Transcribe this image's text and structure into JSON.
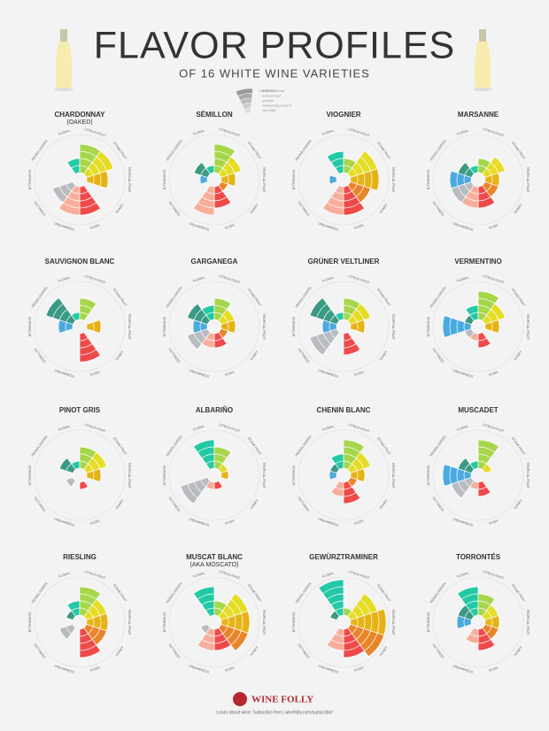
{
  "title": "FLAVOR PROFILES",
  "subtitle": "OF 16 WHITE WINE VARIETIES",
  "legend": {
    "title": "LEGEND",
    "levels": [
      "bold & intense",
      "pronounced",
      "present",
      "somewhat present",
      "very little"
    ]
  },
  "chart_data": [
    {
      "type": "polar",
      "title": "CHARDONNAY",
      "subtitle": "(OAKED)",
      "categories": [
        "FLORAL",
        "CITRUS FRUIT",
        "STONE FRUIT",
        "TROPICAL FRUIT",
        "HONEY",
        "ACIDS",
        "CREAMINESS",
        "FATTINESS",
        "BITTERNESS",
        "HERBAL/GREEN"
      ],
      "values": [
        2,
        4,
        4,
        3,
        0,
        4,
        4,
        3,
        0,
        0
      ],
      "colors": [
        "#22c9a4",
        "#a6d64a",
        "#e5dc25",
        "#e6b317",
        "#e8852b",
        "#ef4a4a",
        "#f6ae9b",
        "#b8bcc0",
        "#4aaae0",
        "#3a9a84"
      ],
      "rlim": [
        0,
        5
      ]
    },
    {
      "type": "polar",
      "title": "SÉMILLON",
      "categories": [
        "FLORAL",
        "CITRUS FRUIT",
        "STONE FRUIT",
        "TROPICAL FRUIT",
        "HONEY",
        "ACIDS",
        "CREAMINESS",
        "FATTINESS",
        "BITTERNESS",
        "HERBAL/GREEN"
      ],
      "values": [
        1,
        4,
        3,
        2,
        1,
        3,
        4,
        0,
        1,
        2
      ],
      "colors": [
        "#22c9a4",
        "#a6d64a",
        "#e5dc25",
        "#e6b317",
        "#e8852b",
        "#ef4a4a",
        "#f6ae9b",
        "#b8bcc0",
        "#4aaae0",
        "#3a9a84"
      ],
      "rlim": [
        0,
        5
      ]
    },
    {
      "type": "polar",
      "title": "VIOGNIER",
      "categories": [
        "FLORAL",
        "CITRUS FRUIT",
        "STONE FRUIT",
        "TROPICAL FRUIT",
        "HONEY",
        "ACIDS",
        "CREAMINESS",
        "FATTINESS",
        "BITTERNESS",
        "HERBAL/GREEN"
      ],
      "values": [
        3,
        2,
        4,
        4,
        3,
        4,
        4,
        0,
        1,
        0
      ],
      "colors": [
        "#22c9a4",
        "#a6d64a",
        "#e5dc25",
        "#e6b317",
        "#e8852b",
        "#ef4a4a",
        "#f6ae9b",
        "#b8bcc0",
        "#4aaae0",
        "#3a9a84"
      ],
      "rlim": [
        0,
        5
      ]
    },
    {
      "type": "polar",
      "title": "MARSANNE",
      "categories": [
        "FLORAL",
        "CITRUS FRUIT",
        "STONE FRUIT",
        "TROPICAL FRUIT",
        "HONEY",
        "ACIDS",
        "CREAMINESS",
        "FATTINESS",
        "BITTERNESS",
        "HERBAL/GREEN"
      ],
      "values": [
        1,
        2,
        3,
        2,
        2,
        3,
        3,
        3,
        3,
        2
      ],
      "colors": [
        "#22c9a4",
        "#a6d64a",
        "#e5dc25",
        "#e6b317",
        "#e8852b",
        "#ef4a4a",
        "#f6ae9b",
        "#b8bcc0",
        "#4aaae0",
        "#3a9a84"
      ],
      "rlim": [
        0,
        5
      ]
    },
    {
      "type": "polar",
      "title": "SAUVIGNON BLANC",
      "categories": [
        "FLORAL",
        "CITRUS FRUIT",
        "STONE FRUIT",
        "TROPICAL FRUIT",
        "HONEY",
        "ACIDS",
        "CREAMINESS",
        "FATTINESS",
        "BITTERNESS",
        "HERBAL/GREEN"
      ],
      "values": [
        1,
        3,
        0,
        2,
        0,
        4,
        0,
        0,
        2,
        4
      ],
      "colors": [
        "#22c9a4",
        "#a6d64a",
        "#e5dc25",
        "#e6b317",
        "#e8852b",
        "#ef4a4a",
        "#f6ae9b",
        "#b8bcc0",
        "#4aaae0",
        "#3a9a84"
      ],
      "rlim": [
        0,
        5
      ]
    },
    {
      "type": "polar",
      "title": "GARGANEGA",
      "categories": [
        "FLORAL",
        "CITRUS FRUIT",
        "STONE FRUIT",
        "TROPICAL FRUIT",
        "HONEY",
        "ACIDS",
        "CREAMINESS",
        "FATTINESS",
        "BITTERNESS",
        "HERBAL/GREEN"
      ],
      "values": [
        2,
        3,
        2,
        2,
        1,
        2,
        2,
        3,
        2,
        3
      ],
      "colors": [
        "#22c9a4",
        "#a6d64a",
        "#e5dc25",
        "#e6b317",
        "#e8852b",
        "#ef4a4a",
        "#f6ae9b",
        "#b8bcc0",
        "#4aaae0",
        "#3a9a84"
      ],
      "rlim": [
        0,
        5
      ]
    },
    {
      "type": "polar",
      "title": "GRÜNER VELTLINER",
      "categories": [
        "FLORAL",
        "CITRUS FRUIT",
        "STONE FRUIT",
        "TROPICAL FRUIT",
        "HONEY",
        "ACIDS",
        "CREAMINESS",
        "FATTINESS",
        "BITTERNESS",
        "HERBAL/GREEN"
      ],
      "values": [
        1,
        3,
        3,
        2,
        0,
        3,
        0,
        4,
        2,
        4
      ],
      "colors": [
        "#22c9a4",
        "#a6d64a",
        "#e5dc25",
        "#e6b317",
        "#e8852b",
        "#ef4a4a",
        "#f6ae9b",
        "#b8bcc0",
        "#4aaae0",
        "#3a9a84"
      ],
      "rlim": [
        0,
        5
      ]
    },
    {
      "type": "polar",
      "title": "VERMENTINO",
      "categories": [
        "FLORAL",
        "CITRUS FRUIT",
        "STONE FRUIT",
        "TROPICAL FRUIT",
        "HONEY",
        "ACIDS",
        "CREAMINESS",
        "FATTINESS",
        "BITTERNESS",
        "HERBAL/GREEN"
      ],
      "values": [
        2,
        4,
        3,
        2,
        0,
        2,
        1,
        1,
        4,
        1
      ],
      "colors": [
        "#22c9a4",
        "#a6d64a",
        "#e5dc25",
        "#e6b317",
        "#e8852b",
        "#ef4a4a",
        "#f6ae9b",
        "#b8bcc0",
        "#4aaae0",
        "#3a9a84"
      ],
      "rlim": [
        0,
        5
      ]
    },
    {
      "type": "polar",
      "title": "PINOT GRIS",
      "categories": [
        "FLORAL",
        "CITRUS FRUIT",
        "STONE FRUIT",
        "TROPICAL FRUIT",
        "HONEY",
        "ACIDS",
        "CREAMINESS",
        "FATTINESS",
        "BITTERNESS",
        "HERBAL/GREEN"
      ],
      "values": [
        1,
        3,
        3,
        2,
        0,
        1,
        0,
        1,
        0,
        2
      ],
      "colors": [
        "#22c9a4",
        "#a6d64a",
        "#e5dc25",
        "#e6b317",
        "#e8852b",
        "#ef4a4a",
        "#f6ae9b",
        "#b8bcc0",
        "#4aaae0",
        "#3a9a84"
      ],
      "rlim": [
        0,
        5
      ]
    },
    {
      "type": "polar",
      "title": "ALBARIÑO",
      "categories": [
        "FLORAL",
        "CITRUS FRUIT",
        "STONE FRUIT",
        "TROPICAL FRUIT",
        "HONEY",
        "ACIDS",
        "CREAMINESS",
        "FATTINESS",
        "BITTERNESS",
        "HERBAL/GREEN"
      ],
      "values": [
        4,
        3,
        1,
        1,
        0,
        1,
        1,
        4,
        0,
        0
      ],
      "colors": [
        "#22c9a4",
        "#a6d64a",
        "#e5dc25",
        "#e6b317",
        "#e8852b",
        "#ef4a4a",
        "#f6ae9b",
        "#b8bcc0",
        "#4aaae0",
        "#3a9a84"
      ],
      "rlim": [
        0,
        5
      ]
    },
    {
      "type": "polar",
      "title": "CHENIN BLANC",
      "categories": [
        "FLORAL",
        "CITRUS FRUIT",
        "STONE FRUIT",
        "TROPICAL FRUIT",
        "HONEY",
        "ACIDS",
        "CREAMINESS",
        "FATTINESS",
        "BITTERNESS",
        "HERBAL/GREEN"
      ],
      "values": [
        2,
        4,
        3,
        2,
        1,
        3,
        2,
        0,
        1,
        1
      ],
      "colors": [
        "#22c9a4",
        "#a6d64a",
        "#e5dc25",
        "#e6b317",
        "#e8852b",
        "#ef4a4a",
        "#f6ae9b",
        "#b8bcc0",
        "#4aaae0",
        "#3a9a84"
      ],
      "rlim": [
        0,
        5
      ]
    },
    {
      "type": "polar",
      "title": "MUSCADET",
      "categories": [
        "FLORAL",
        "CITRUS FRUIT",
        "STONE FRUIT",
        "TROPICAL FRUIT",
        "HONEY",
        "ACIDS",
        "CREAMINESS",
        "FATTINESS",
        "BITTERNESS",
        "HERBAL/GREEN"
      ],
      "values": [
        1,
        4,
        1,
        0,
        0,
        2,
        1,
        3,
        4,
        2
      ],
      "colors": [
        "#22c9a4",
        "#a6d64a",
        "#e5dc25",
        "#e6b317",
        "#e8852b",
        "#ef4a4a",
        "#f6ae9b",
        "#b8bcc0",
        "#4aaae0",
        "#3a9a84"
      ],
      "rlim": [
        0,
        5
      ]
    },
    {
      "type": "polar",
      "title": "RIESLING",
      "categories": [
        "FLORAL",
        "CITRUS FRUIT",
        "STONE FRUIT",
        "TROPICAL FRUIT",
        "HONEY",
        "ACIDS",
        "CREAMINESS",
        "FATTINESS",
        "BITTERNESS",
        "HERBAL/GREEN"
      ],
      "values": [
        2,
        4,
        3,
        3,
        3,
        4,
        0,
        2,
        0,
        1
      ],
      "colors": [
        "#22c9a4",
        "#a6d64a",
        "#e5dc25",
        "#e6b317",
        "#e8852b",
        "#ef4a4a",
        "#f6ae9b",
        "#b8bcc0",
        "#4aaae0",
        "#3a9a84"
      ],
      "rlim": [
        0,
        5
      ]
    },
    {
      "type": "polar",
      "title": "MUSCAT BLANC",
      "subtitle": "(AKA MOSCATO)",
      "categories": [
        "FLORAL",
        "CITRUS FRUIT",
        "STONE FRUIT",
        "TROPICAL FRUIT",
        "HONEY",
        "ACIDS",
        "CREAMINESS",
        "FATTINESS",
        "BITTERNESS",
        "HERBAL/GREEN"
      ],
      "values": [
        4,
        2,
        4,
        4,
        4,
        3,
        3,
        1,
        0,
        0
      ],
      "colors": [
        "#22c9a4",
        "#a6d64a",
        "#e5dc25",
        "#e6b317",
        "#e8852b",
        "#ef4a4a",
        "#f6ae9b",
        "#b8bcc0",
        "#4aaae0",
        "#3a9a84"
      ],
      "rlim": [
        0,
        5
      ]
    },
    {
      "type": "polar",
      "title": "GEWÜRZTRAMINER",
      "categories": [
        "FLORAL",
        "CITRUS FRUIT",
        "STONE FRUIT",
        "TROPICAL FRUIT",
        "HONEY",
        "ACIDS",
        "CREAMINESS",
        "FATTINESS",
        "BITTERNESS",
        "HERBAL/GREEN"
      ],
      "values": [
        5,
        1,
        4,
        5,
        5,
        4,
        3,
        0,
        0,
        1
      ],
      "colors": [
        "#22c9a4",
        "#a6d64a",
        "#e5dc25",
        "#e6b317",
        "#e8852b",
        "#ef4a4a",
        "#f6ae9b",
        "#b8bcc0",
        "#4aaae0",
        "#3a9a84"
      ],
      "rlim": [
        0,
        5
      ]
    },
    {
      "type": "polar",
      "title": "TORRONTÉS",
      "categories": [
        "FLORAL",
        "CITRUS FRUIT",
        "STONE FRUIT",
        "TROPICAL FRUIT",
        "HONEY",
        "ACIDS",
        "CREAMINESS",
        "FATTINESS",
        "BITTERNESS",
        "HERBAL/GREEN"
      ],
      "values": [
        4,
        3,
        2,
        2,
        2,
        3,
        2,
        0,
        2,
        2
      ],
      "colors": [
        "#22c9a4",
        "#a6d64a",
        "#e5dc25",
        "#e6b317",
        "#e8852b",
        "#ef4a4a",
        "#f6ae9b",
        "#b8bcc0",
        "#4aaae0",
        "#3a9a84"
      ],
      "rlim": [
        0,
        5
      ]
    }
  ],
  "footer": {
    "brand": "WINE FOLLY",
    "note": "Learn about wine: Subscribe free | winefolly.com/subscribe/"
  }
}
